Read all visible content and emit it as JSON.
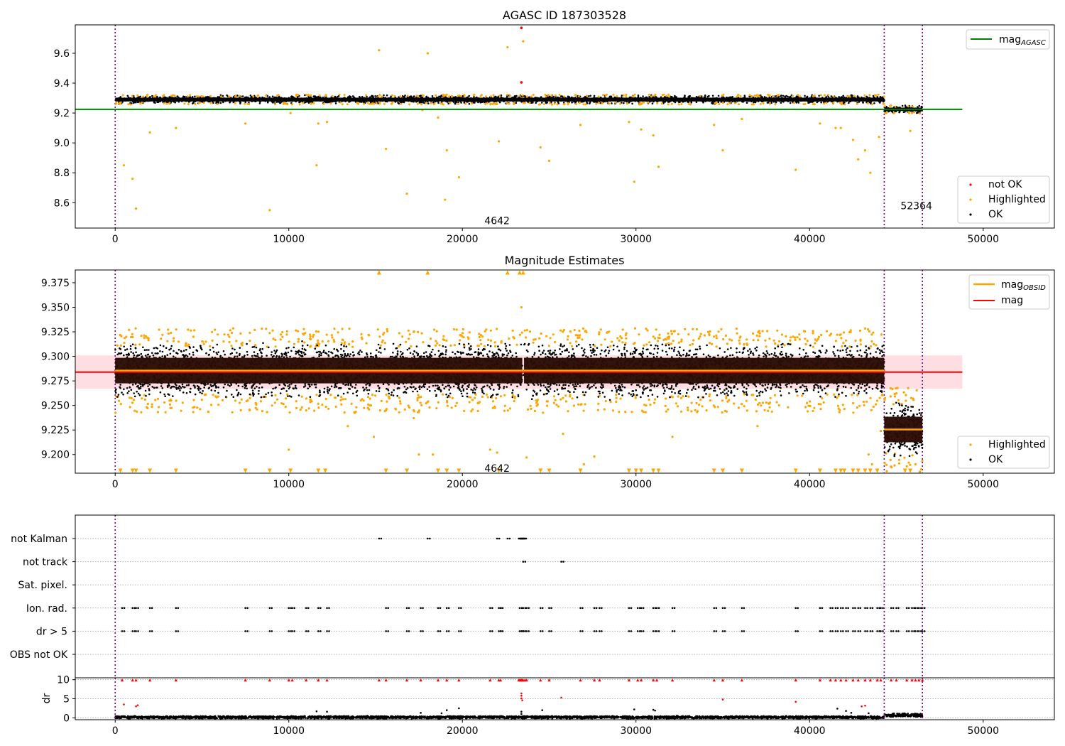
{
  "colors": {
    "ok": "#000000",
    "highlighted": "#ffa500",
    "not_ok": "#ff0000",
    "agasc_line": "#008000",
    "mag_line": "#ff0000",
    "obsid_line": "#ffa500",
    "band": "#ffb6c1",
    "obsid_divider": "#800080"
  },
  "chart_data": [
    {
      "type": "scatter",
      "title": "AGASC ID 187303528",
      "xlim": [
        -2300,
        54100
      ],
      "ylim": [
        8.43,
        9.79
      ],
      "xticks": [
        0,
        10000,
        20000,
        30000,
        40000,
        50000
      ],
      "yticks": [
        8.6,
        8.8,
        9.0,
        9.2,
        9.4,
        9.6
      ],
      "obsid_boundaries": [
        0,
        44300,
        46500
      ],
      "obsid_labels": [
        {
          "text": "4642",
          "x": 22000,
          "y": 8.48
        },
        {
          "text": "52364",
          "x": 46150,
          "y": 8.58
        }
      ],
      "mag_agasc": {
        "value": 9.225,
        "xrange": [
          -2300,
          48800
        ]
      },
      "series": [
        {
          "name": "not OK",
          "points": [
            [
              23400,
              9.77
            ],
            [
              23400,
              9.405
            ]
          ]
        },
        {
          "name": "Highlighted",
          "points": [
            [
              500,
              8.85
            ],
            [
              1000,
              8.76
            ],
            [
              1200,
              8.56
            ],
            [
              2000,
              9.07
            ],
            [
              3500,
              9.1
            ],
            [
              7500,
              9.13
            ],
            [
              8900,
              8.55
            ],
            [
              10100,
              9.2
            ],
            [
              11600,
              8.85
            ],
            [
              11700,
              9.13
            ],
            [
              12200,
              9.14
            ],
            [
              15200,
              9.62
            ],
            [
              15600,
              8.96
            ],
            [
              16800,
              8.66
            ],
            [
              17700,
              9.22
            ],
            [
              18000,
              9.6
            ],
            [
              18600,
              9.17
            ],
            [
              19000,
              8.62
            ],
            [
              19100,
              8.95
            ],
            [
              19800,
              8.77
            ],
            [
              22100,
              9.01
            ],
            [
              22600,
              9.64
            ],
            [
              23500,
              9.68
            ],
            [
              24500,
              8.97
            ],
            [
              25000,
              8.88
            ],
            [
              26800,
              9.12
            ],
            [
              29600,
              9.14
            ],
            [
              29900,
              8.74
            ],
            [
              30300,
              9.09
            ],
            [
              31000,
              9.05
            ],
            [
              31300,
              8.84
            ],
            [
              34500,
              9.12
            ],
            [
              35000,
              8.95
            ],
            [
              36100,
              9.16
            ],
            [
              39200,
              8.82
            ],
            [
              40600,
              9.13
            ],
            [
              41500,
              9.1
            ],
            [
              41800,
              9.1
            ],
            [
              42500,
              9.02
            ],
            [
              42800,
              8.89
            ],
            [
              43200,
              8.95
            ],
            [
              43500,
              8.8
            ],
            [
              44000,
              9.04
            ],
            [
              45800,
              9.08
            ],
            [
              45900,
              9.2
            ]
          ]
        },
        {
          "name": "OK",
          "bands": [
            {
              "x0": 0,
              "x1": 23500,
              "center": 9.29,
              "half_width": 0.023
            },
            {
              "x0": 23500,
              "x1": 44300,
              "center": 9.29,
              "half_width": 0.023
            },
            {
              "x0": 44300,
              "x1": 46500,
              "center": 9.225,
              "half_width": 0.02
            }
          ]
        }
      ],
      "legend": [
        {
          "label": "mag",
          "sub": "AGASC",
          "kind": "line",
          "color_key": "agasc_line",
          "position": "top-right"
        },
        {
          "label": "not OK",
          "kind": "dot",
          "color_key": "not_ok",
          "position": "bottom-right"
        },
        {
          "label": "Highlighted",
          "kind": "dot",
          "color_key": "highlighted",
          "position": "bottom-right"
        },
        {
          "label": "OK",
          "kind": "dot",
          "color_key": "ok",
          "position": "bottom-right"
        }
      ]
    },
    {
      "type": "scatter",
      "title": "Magnitude Estimates",
      "xlim": [
        -2300,
        54100
      ],
      "ylim": [
        9.181,
        9.388
      ],
      "xticks": [
        0,
        10000,
        20000,
        30000,
        40000,
        50000
      ],
      "yticks": [
        9.2,
        9.225,
        9.25,
        9.275,
        9.3,
        9.325,
        9.35,
        9.375
      ],
      "obsid_boundaries": [
        0,
        44300,
        46500
      ],
      "obsid_labels": [
        {
          "text": "4642",
          "x": 22000,
          "y": 9.186
        }
      ],
      "mag": {
        "value": 9.284,
        "band": [
          9.267,
          9.301
        ],
        "xrange": [
          -2300,
          48800
        ]
      },
      "mag_obsid": [
        {
          "value": 9.2855,
          "xrange": [
            0,
            44300
          ]
        },
        {
          "value": 9.2255,
          "xrange": [
            44300,
            46500
          ]
        }
      ],
      "series": [
        {
          "name": "Highlighted",
          "points": [
            [
              15200,
              9.385
            ],
            [
              18000,
              9.385
            ],
            [
              22600,
              9.385
            ],
            [
              23300,
              9.385
            ],
            [
              23500,
              9.385
            ],
            [
              23400,
              9.35
            ],
            [
              32100,
              9.218
            ],
            [
              14900,
              9.218
            ],
            [
              13400,
              9.229
            ],
            [
              37000,
              9.229
            ],
            [
              10000,
              9.205
            ],
            [
              21600,
              9.205
            ],
            [
              22000,
              9.202
            ],
            [
              17500,
              9.2
            ],
            [
              18300,
              9.2
            ],
            [
              23700,
              9.197
            ],
            [
              27600,
              9.198
            ],
            [
              17200,
              9.237
            ],
            [
              15600,
              9.245
            ],
            [
              27000,
              9.19
            ],
            [
              43400,
              9.2
            ],
            [
              43600,
              9.19
            ],
            [
              44100,
              9.224
            ],
            [
              25800,
              9.221
            ],
            [
              46100,
              9.19
            ],
            [
              45600,
              9.188
            ]
          ]
        },
        {
          "name": "OK",
          "bands": [
            {
              "x0": 0,
              "x1": 23450,
              "center": 9.2855,
              "half_width": 0.021
            },
            {
              "x0": 23550,
              "x1": 44300,
              "center": 9.2855,
              "half_width": 0.021
            },
            {
              "x0": 44300,
              "x1": 46500,
              "center": 9.2255,
              "half_width": 0.021
            }
          ]
        }
      ],
      "lower_limit_markers_x": [
        300,
        1000,
        1200,
        2000,
        3500,
        7500,
        8900,
        10100,
        11700,
        12100,
        15600,
        16800,
        18600,
        19100,
        19800,
        22100,
        24500,
        25000,
        26800,
        29600,
        30000,
        30300,
        31000,
        31300,
        34500,
        35000,
        36100,
        39200,
        40600,
        41500,
        41800,
        42000,
        42500,
        42800,
        43200,
        43500,
        43900,
        45500,
        45800
      ],
      "legend": [
        {
          "label": "mag",
          "sub": "OBSID",
          "kind": "line",
          "color_key": "obsid_line",
          "position": "top-right"
        },
        {
          "label": "mag",
          "kind": "line",
          "color_key": "mag_line",
          "position": "top-right"
        },
        {
          "label": "Highlighted",
          "kind": "dot",
          "color_key": "highlighted",
          "position": "bottom-right"
        },
        {
          "label": "OK",
          "kind": "dot",
          "color_key": "ok",
          "position": "bottom-right"
        }
      ]
    },
    {
      "type": "scatter",
      "xlim": [
        -2300,
        54100
      ],
      "xticks": [
        0,
        10000,
        20000,
        30000,
        40000,
        50000
      ],
      "obsid_boundaries": [
        0,
        44300,
        46500
      ],
      "flag_rows": [
        "not Kalman",
        "not track",
        "Sat. pixel.",
        "Ion. rad.",
        "dr > 5",
        "OBS not OK"
      ],
      "flags": {
        "not Kalman": [
          15200,
          18000,
          22000,
          22600,
          23250,
          23300,
          23350,
          23400,
          23450,
          23500,
          23550
        ],
        "not track": [
          23500,
          25700
        ],
        "Sat. pixel.": [],
        "Ion. rad.": [
          400,
          1000,
          1200,
          2000,
          3500,
          7500,
          8900,
          10000,
          10200,
          11000,
          11700,
          12200,
          15600,
          16800,
          17600,
          18600,
          19100,
          19800,
          21600,
          22100,
          22200,
          23300,
          23500,
          23700,
          24500,
          25000,
          26800,
          27600,
          27900,
          29600,
          30100,
          30300,
          31000,
          31200,
          32100,
          34500,
          35000,
          36100,
          39200,
          40600,
          41200,
          41500,
          41800,
          42100,
          42500,
          42800,
          43200,
          43500,
          43900,
          44100,
          44700,
          45000,
          45600,
          45900,
          46100,
          46300,
          46500
        ],
        "dr > 5": [
          400,
          1000,
          1200,
          2000,
          3500,
          7500,
          8900,
          10000,
          10200,
          11000,
          11700,
          12200,
          15600,
          16800,
          17600,
          18600,
          19100,
          19800,
          21600,
          22100,
          22200,
          23300,
          23400,
          23500,
          23700,
          24500,
          25000,
          26800,
          27600,
          27900,
          29600,
          30100,
          30300,
          31000,
          31200,
          32100,
          34500,
          35000,
          36100,
          39200,
          40600,
          41200,
          41500,
          41800,
          42100,
          42500,
          42800,
          43200,
          43500,
          43900,
          44100,
          44700,
          45000,
          45600,
          45900,
          46100,
          46300,
          46500
        ],
        "OBS not OK": []
      },
      "dr": {
        "ylabel": "dr",
        "yticks": [
          0,
          5,
          10
        ],
        "ylim": [
          -0.5,
          10.5
        ],
        "clip_value": 10,
        "clipped_x": [
          400,
          1000,
          1200,
          2000,
          3500,
          7500,
          8900,
          10000,
          10200,
          11000,
          11700,
          12200,
          15200,
          15600,
          16800,
          17600,
          18600,
          19100,
          19800,
          21600,
          22100,
          22200,
          23250,
          23300,
          23350,
          23400,
          23450,
          23500,
          23600,
          23700,
          24500,
          25000,
          26800,
          27600,
          27900,
          29600,
          30100,
          30300,
          31000,
          31200,
          32100,
          34500,
          35000,
          36100,
          39200,
          40600,
          41200,
          41500,
          41800,
          42100,
          42500,
          42800,
          43200,
          43500,
          43900,
          44100,
          44700,
          45000,
          45600,
          45900,
          46100,
          46300,
          46500
        ],
        "red_points": [
          [
            500,
            3.5
          ],
          [
            1200,
            3.0
          ],
          [
            1300,
            3.3
          ],
          [
            23400,
            6.4
          ],
          [
            23400,
            5.8
          ],
          [
            23400,
            5.1
          ],
          [
            23450,
            4.6
          ],
          [
            25700,
            5.3
          ],
          [
            35000,
            4.8
          ],
          [
            39200,
            4.2
          ],
          [
            43000,
            3.0
          ],
          [
            43200,
            3.2
          ]
        ],
        "black_points": [
          [
            11600,
            1.7
          ],
          [
            12200,
            1.6
          ],
          [
            17600,
            1.3
          ],
          [
            18800,
            1.2
          ],
          [
            19100,
            2.0
          ],
          [
            19800,
            2.5
          ],
          [
            23400,
            1.0
          ],
          [
            23400,
            1.6
          ],
          [
            24600,
            2.0
          ],
          [
            29900,
            2.2
          ],
          [
            31000,
            2.1
          ],
          [
            31100,
            1.9
          ],
          [
            41600,
            2.4
          ],
          [
            42100,
            1.8
          ],
          [
            42400,
            1.3
          ],
          [
            43400,
            1.2
          ]
        ],
        "bands": [
          {
            "x0": 0,
            "x1": 44300,
            "center": 0.15,
            "half_width": 0.25
          },
          {
            "x0": 44300,
            "x1": 46500,
            "center": 0.7,
            "half_width": 0.35
          }
        ]
      }
    }
  ]
}
